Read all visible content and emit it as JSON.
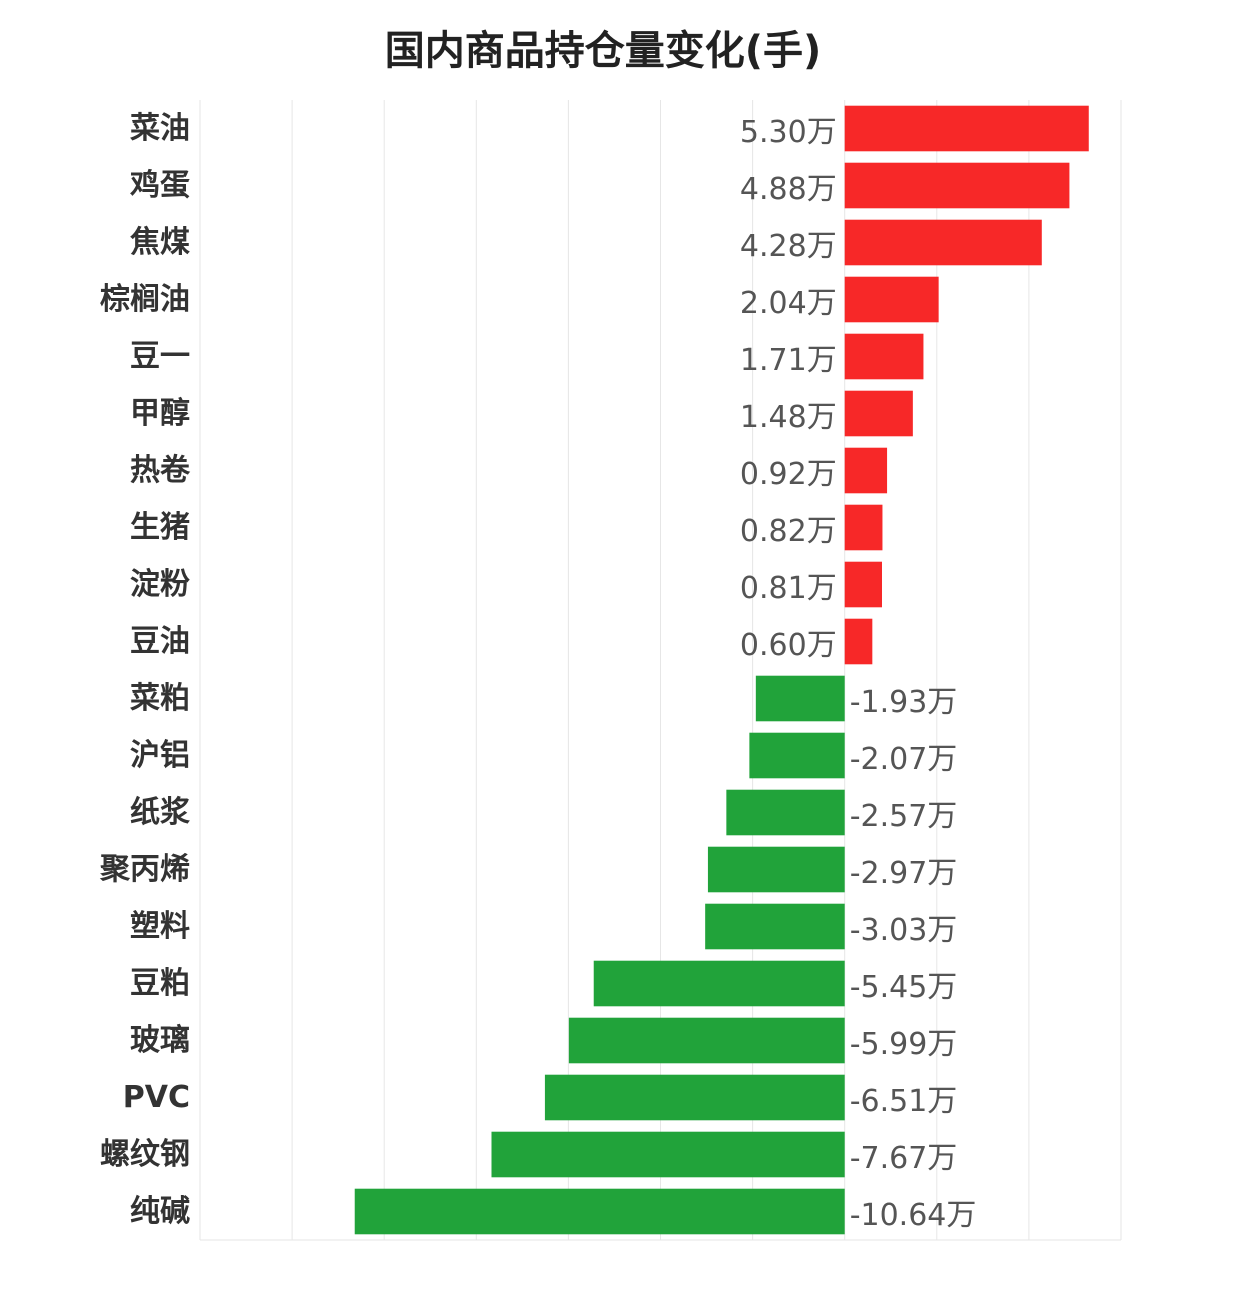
{
  "chart_data": {
    "type": "bar",
    "orientation": "horizontal",
    "title": "国内商品持仓量变化(手)",
    "unit_suffix": "万",
    "xlabel": "",
    "ylabel": "",
    "xlim": [
      -14,
      6
    ],
    "grid": true,
    "legend": "none",
    "colors": {
      "positive": "#f72828",
      "negative": "#21a33a"
    },
    "categories": [
      "菜油",
      "鸡蛋",
      "焦煤",
      "棕榈油",
      "豆一",
      "甲醇",
      "热卷",
      "生猪",
      "淀粉",
      "豆油",
      "菜粕",
      "沪铝",
      "纸浆",
      "聚丙烯",
      "塑料",
      "豆粕",
      "玻璃",
      "PVC",
      "螺纹钢",
      "纯碱"
    ],
    "values": [
      5.3,
      4.88,
      4.28,
      2.04,
      1.71,
      1.48,
      0.92,
      0.82,
      0.81,
      0.6,
      -1.93,
      -2.07,
      -2.57,
      -2.97,
      -3.03,
      -5.45,
      -5.99,
      -6.51,
      -7.67,
      -10.64
    ],
    "value_labels": [
      "5.30万",
      "4.88万",
      "4.28万",
      "2.04万",
      "1.71万",
      "1.48万",
      "0.92万",
      "0.82万",
      "0.81万",
      "0.60万",
      "-1.93万",
      "-2.07万",
      "-2.57万",
      "-2.97万",
      "-3.03万",
      "-5.45万",
      "-5.99万",
      "-6.51万",
      "-7.67万",
      "-10.64万"
    ]
  }
}
